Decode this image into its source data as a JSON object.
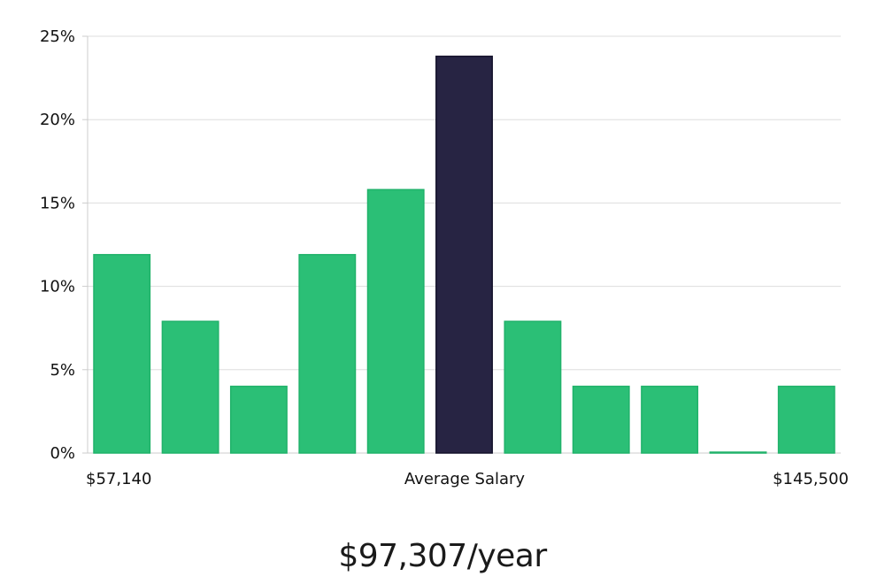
{
  "chart_data": {
    "type": "bar",
    "y_axis": {
      "ticks": [
        "0%",
        "5%",
        "10%",
        "15%",
        "20%",
        "25%"
      ],
      "ylim": [
        0,
        25
      ],
      "unit": "%",
      "grid": true
    },
    "x_labels": {
      "left": "$57,140",
      "center": "Average Salary",
      "right": "$145,500"
    },
    "values": [
      11.9,
      7.9,
      4.0,
      11.9,
      15.8,
      23.8,
      7.9,
      4.0,
      4.0,
      0.05,
      4.0
    ],
    "highlight_index": 5,
    "colors": {
      "bar": "#2bbf76",
      "bar_border": "#20b26a",
      "highlight": "#272443",
      "grid": "#dddddd",
      "axis": "#cccccc"
    }
  },
  "summary": {
    "salary": "$97,307/year"
  }
}
